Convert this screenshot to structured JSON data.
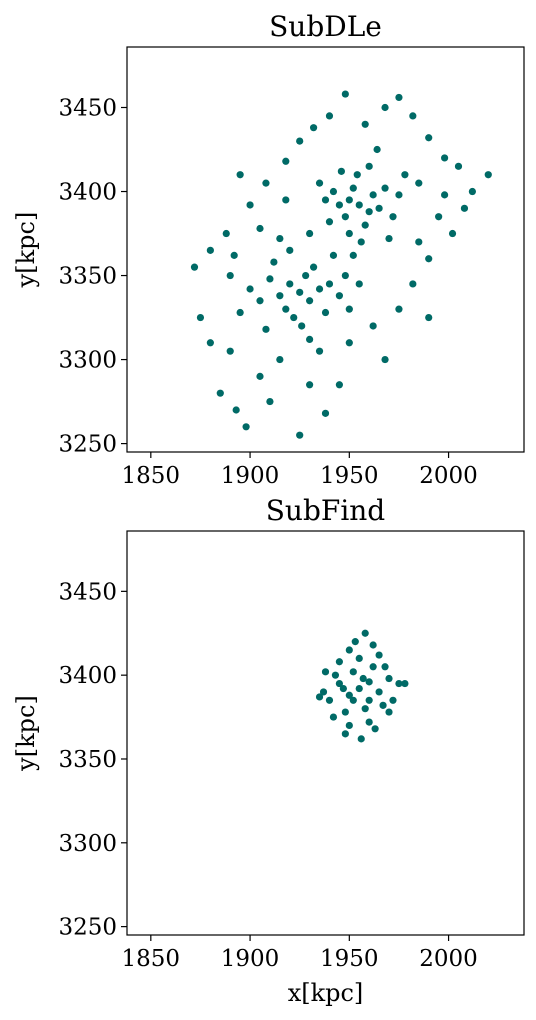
{
  "chart_data": [
    {
      "type": "scatter",
      "title": "SubDLe",
      "ylabel": "y[kpc]",
      "color": "#006a66",
      "xlim": [
        1838,
        2038
      ],
      "ylim": [
        3245,
        3486
      ],
      "xticks": [
        1850,
        1900,
        1950,
        2000
      ],
      "yticks": [
        3250,
        3300,
        3350,
        3400,
        3450
      ],
      "x": [
        1925,
        1920,
        1930,
        1915,
        1935,
        1928,
        1918,
        1940,
        1910,
        1922,
        1932,
        1905,
        1945,
        1926,
        1912,
        1938,
        1900,
        1948,
        1920,
        1930,
        1895,
        1950,
        1915,
        1935,
        1890,
        1955,
        1908,
        1942,
        1955,
        1950,
        1960,
        1948,
        1962,
        1952,
        1958,
        1945,
        1965,
        1954,
        1950,
        1968,
        1942,
        1960,
        1972,
        1940,
        1956,
        1975,
        1946,
        1964,
        1938,
        1978,
        1952,
        1970,
        1935,
        1872,
        1875,
        1880,
        1885,
        1890,
        1893,
        1898,
        1905,
        1910,
        1915,
        1925,
        1930,
        1938,
        1945,
        1950,
        1962,
        1968,
        1975,
        1982,
        1990,
        1985,
        1995,
        2002,
        2008,
        2012,
        2020,
        2005,
        1998,
        1990,
        1982,
        1975,
        1968,
        1958,
        1948,
        1940,
        1932,
        1925,
        1918,
        1908,
        1900,
        1895,
        1888,
        1880,
        1892,
        1905,
        1918,
        1930,
        1985,
        1998,
        1990
      ],
      "y": [
        3340,
        3345,
        3335,
        3338,
        3342,
        3350,
        3330,
        3345,
        3348,
        3325,
        3355,
        3335,
        3338,
        3320,
        3358,
        3328,
        3342,
        3350,
        3365,
        3312,
        3328,
        3330,
        3372,
        3305,
        3350,
        3345,
        3318,
        3362,
        3392,
        3395,
        3388,
        3385,
        3398,
        3402,
        3380,
        3392,
        3390,
        3410,
        3375,
        3402,
        3400,
        3415,
        3385,
        3382,
        3370,
        3398,
        3412,
        3425,
        3395,
        3410,
        3362,
        3372,
        3405,
        3355,
        3325,
        3310,
        3280,
        3305,
        3270,
        3260,
        3290,
        3275,
        3300,
        3255,
        3285,
        3268,
        3285,
        3310,
        3320,
        3300,
        3330,
        3345,
        3325,
        3370,
        3385,
        3375,
        3390,
        3400,
        3410,
        3415,
        3420,
        3432,
        3445,
        3456,
        3450,
        3440,
        3458,
        3445,
        3438,
        3430,
        3418,
        3405,
        3392,
        3410,
        3375,
        3365,
        3362,
        3378,
        3395,
        3375,
        3405,
        3398,
        3360
      ]
    },
    {
      "type": "scatter",
      "title": "SubFind",
      "ylabel": "y[kpc]",
      "xlabel": "x[kpc]",
      "color": "#006a66",
      "xlim": [
        1838,
        2038
      ],
      "ylim": [
        3245,
        3486
      ],
      "xticks": [
        1850,
        1900,
        1950,
        2000
      ],
      "yticks": [
        3250,
        3300,
        3350,
        3400,
        3450
      ],
      "x": [
        1955,
        1950,
        1960,
        1945,
        1965,
        1952,
        1958,
        1948,
        1962,
        1955,
        1940,
        1970,
        1943,
        1967,
        1950,
        1960,
        1975,
        1937,
        1953,
        1958,
        1962,
        1948,
        1956,
        1972,
        1938,
        1965,
        1945,
        1968,
        1952,
        1957,
        1942,
        1970,
        1978,
        1935,
        1950,
        1963,
        1947,
        1960
      ],
      "y": [
        3392,
        3388,
        3396,
        3395,
        3390,
        3402,
        3380,
        3378,
        3405,
        3410,
        3385,
        3398,
        3400,
        3382,
        3370,
        3372,
        3395,
        3390,
        3420,
        3425,
        3418,
        3365,
        3362,
        3385,
        3402,
        3412,
        3408,
        3405,
        3385,
        3398,
        3375,
        3378,
        3395,
        3387,
        3415,
        3368,
        3392,
        3385
      ]
    }
  ]
}
